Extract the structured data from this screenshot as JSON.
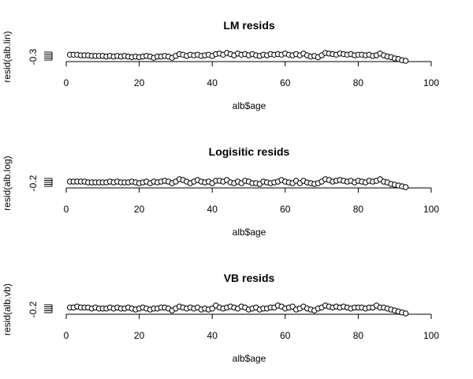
{
  "chart_data": [
    {
      "type": "scatter",
      "title": "LM resids",
      "xlabel": "alb$age",
      "ylabel": "resid(alb.lin)",
      "xlim": [
        0,
        100
      ],
      "x_ticks": [
        0,
        20,
        40,
        60,
        80,
        100
      ],
      "y_tick_labels": [
        "-0.3"
      ],
      "series": [
        {
          "x": [
            1,
            2,
            3,
            4,
            5,
            6,
            7,
            8,
            9,
            10,
            11,
            12,
            13,
            14,
            15,
            16,
            17,
            18,
            19,
            20,
            21,
            22,
            23,
            24,
            25,
            26,
            27,
            28,
            29,
            30,
            31,
            32,
            33,
            34,
            35,
            36,
            37,
            38,
            39,
            40,
            41,
            42,
            43,
            44,
            45,
            46,
            47,
            48,
            49,
            50,
            51,
            52,
            53,
            54,
            55,
            56,
            57,
            58,
            59,
            60,
            61,
            62,
            63,
            64,
            65,
            66,
            67,
            68,
            69,
            70,
            71,
            72,
            73,
            74,
            75,
            76,
            77,
            78,
            79,
            80,
            81,
            82,
            83,
            84,
            85,
            86,
            87,
            88,
            89,
            90,
            91,
            92,
            93
          ],
          "y": [
            -0.299,
            -0.299,
            -0.299,
            -0.3,
            -0.3,
            -0.3,
            -0.301,
            -0.301,
            -0.301,
            -0.301,
            -0.302,
            -0.301,
            -0.302,
            -0.301,
            -0.302,
            -0.301,
            -0.302,
            -0.303,
            -0.302,
            -0.303,
            -0.302,
            -0.301,
            -0.302,
            -0.304,
            -0.302,
            -0.302,
            -0.301,
            -0.302,
            -0.304,
            -0.301,
            -0.298,
            -0.299,
            -0.301,
            -0.299,
            -0.3,
            -0.299,
            -0.301,
            -0.3,
            -0.299,
            -0.301,
            -0.298,
            -0.297,
            -0.299,
            -0.296,
            -0.298,
            -0.3,
            -0.297,
            -0.299,
            -0.298,
            -0.3,
            -0.298,
            -0.3,
            -0.301,
            -0.299,
            -0.3,
            -0.298,
            -0.299,
            -0.298,
            -0.299,
            -0.297,
            -0.299,
            -0.3,
            -0.298,
            -0.3,
            -0.297,
            -0.3,
            -0.302,
            -0.301,
            -0.303,
            -0.3,
            -0.296,
            -0.297,
            -0.298,
            -0.299,
            -0.297,
            -0.298,
            -0.299,
            -0.298,
            -0.3,
            -0.299,
            -0.299,
            -0.3,
            -0.299,
            -0.301,
            -0.3,
            -0.297,
            -0.3,
            -0.302,
            -0.303,
            -0.305,
            -0.306,
            -0.308,
            -0.309
          ]
        }
      ]
    },
    {
      "type": "scatter",
      "title": "Logisitic resids",
      "xlabel": "alb$age",
      "ylabel": "resid(alb.log)",
      "xlim": [
        0,
        100
      ],
      "x_ticks": [
        0,
        20,
        40,
        60,
        80,
        100
      ],
      "y_tick_labels": [
        "-0.2"
      ],
      "series": [
        {
          "x": [
            1,
            2,
            3,
            4,
            5,
            6,
            7,
            8,
            9,
            10,
            11,
            12,
            13,
            14,
            15,
            16,
            17,
            18,
            19,
            20,
            21,
            22,
            23,
            24,
            25,
            26,
            27,
            28,
            29,
            30,
            31,
            32,
            33,
            34,
            35,
            36,
            37,
            38,
            39,
            40,
            41,
            42,
            43,
            44,
            45,
            46,
            47,
            48,
            49,
            50,
            51,
            52,
            53,
            54,
            55,
            56,
            57,
            58,
            59,
            60,
            61,
            62,
            63,
            64,
            65,
            66,
            67,
            68,
            69,
            70,
            71,
            72,
            73,
            74,
            75,
            76,
            77,
            78,
            79,
            80,
            81,
            82,
            83,
            84,
            85,
            86,
            87,
            88,
            89,
            90,
            91,
            92,
            93
          ],
          "y": [
            -0.201,
            -0.201,
            -0.201,
            -0.201,
            -0.201,
            -0.202,
            -0.202,
            -0.202,
            -0.202,
            -0.202,
            -0.202,
            -0.201,
            -0.202,
            -0.201,
            -0.202,
            -0.202,
            -0.202,
            -0.201,
            -0.202,
            -0.203,
            -0.202,
            -0.201,
            -0.203,
            -0.201,
            -0.202,
            -0.201,
            -0.2,
            -0.201,
            -0.203,
            -0.201,
            -0.198,
            -0.199,
            -0.201,
            -0.203,
            -0.201,
            -0.199,
            -0.201,
            -0.202,
            -0.201,
            -0.203,
            -0.2,
            -0.2,
            -0.201,
            -0.199,
            -0.202,
            -0.203,
            -0.201,
            -0.203,
            -0.2,
            -0.201,
            -0.203,
            -0.203,
            -0.204,
            -0.201,
            -0.202,
            -0.203,
            -0.202,
            -0.201,
            -0.199,
            -0.201,
            -0.202,
            -0.203,
            -0.2,
            -0.203,
            -0.2,
            -0.202,
            -0.203,
            -0.204,
            -0.203,
            -0.201,
            -0.198,
            -0.199,
            -0.201,
            -0.2,
            -0.199,
            -0.2,
            -0.201,
            -0.2,
            -0.202,
            -0.2,
            -0.201,
            -0.202,
            -0.2,
            -0.201,
            -0.2,
            -0.198,
            -0.201,
            -0.202,
            -0.204,
            -0.205,
            -0.206,
            -0.207,
            -0.208
          ]
        }
      ]
    },
    {
      "type": "scatter",
      "title": "VB resids",
      "xlabel": "alb$age",
      "ylabel": "resid(alb.vb)",
      "xlim": [
        0,
        100
      ],
      "x_ticks": [
        0,
        20,
        40,
        60,
        80,
        100
      ],
      "y_tick_labels": [
        "-0.2"
      ],
      "series": [
        {
          "x": [
            1,
            2,
            3,
            4,
            5,
            6,
            7,
            8,
            9,
            10,
            11,
            12,
            13,
            14,
            15,
            16,
            17,
            18,
            19,
            20,
            21,
            22,
            23,
            24,
            25,
            26,
            27,
            28,
            29,
            30,
            31,
            32,
            33,
            34,
            35,
            36,
            37,
            38,
            39,
            40,
            41,
            42,
            43,
            44,
            45,
            46,
            47,
            48,
            49,
            50,
            51,
            52,
            53,
            54,
            55,
            56,
            57,
            58,
            59,
            60,
            61,
            62,
            63,
            64,
            65,
            66,
            67,
            68,
            69,
            70,
            71,
            72,
            73,
            74,
            75,
            76,
            77,
            78,
            79,
            80,
            81,
            82,
            83,
            84,
            85,
            86,
            87,
            88,
            89,
            90,
            91,
            92,
            93
          ],
          "y": [
            -0.2,
            -0.2,
            -0.199,
            -0.2,
            -0.2,
            -0.2,
            -0.201,
            -0.2,
            -0.201,
            -0.201,
            -0.201,
            -0.2,
            -0.201,
            -0.2,
            -0.201,
            -0.201,
            -0.2,
            -0.201,
            -0.202,
            -0.201,
            -0.2,
            -0.201,
            -0.202,
            -0.201,
            -0.201,
            -0.2,
            -0.2,
            -0.201,
            -0.203,
            -0.201,
            -0.199,
            -0.2,
            -0.201,
            -0.2,
            -0.201,
            -0.2,
            -0.202,
            -0.201,
            -0.202,
            -0.201,
            -0.198,
            -0.2,
            -0.201,
            -0.2,
            -0.199,
            -0.2,
            -0.201,
            -0.199,
            -0.2,
            -0.202,
            -0.201,
            -0.2,
            -0.202,
            -0.201,
            -0.201,
            -0.2,
            -0.2,
            -0.198,
            -0.199,
            -0.201,
            -0.2,
            -0.199,
            -0.202,
            -0.201,
            -0.199,
            -0.201,
            -0.202,
            -0.203,
            -0.201,
            -0.2,
            -0.198,
            -0.199,
            -0.2,
            -0.199,
            -0.2,
            -0.199,
            -0.2,
            -0.201,
            -0.2,
            -0.2,
            -0.2,
            -0.201,
            -0.2,
            -0.2,
            -0.198,
            -0.2,
            -0.2,
            -0.201,
            -0.202,
            -0.203,
            -0.204,
            -0.205,
            -0.206
          ]
        }
      ]
    }
  ]
}
